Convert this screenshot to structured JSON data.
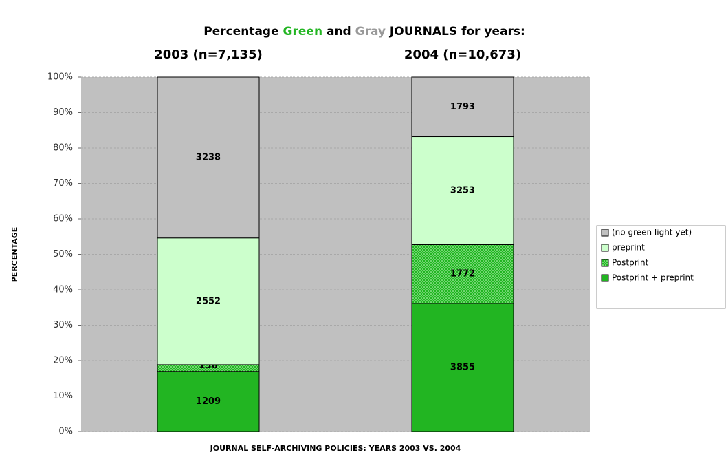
{
  "chart_data": {
    "type": "bar",
    "stacking": "percent",
    "title": [
      "Percentage ",
      "Green",
      " and ",
      "Gray",
      " JOURNALS for years:"
    ],
    "title_colors": [
      "#000000",
      "#22b522",
      "#000000",
      "#999999",
      "#000000"
    ],
    "categories": [
      "2003 (n=7,135)",
      "2004 (n=10,673)"
    ],
    "y_label": "PERCENTAGE",
    "x_label": "JOURNAL SELF-ARCHIVING POLICIES: YEARS 2003 VS. 2004",
    "ylim": [
      0,
      100
    ],
    "yticks": [
      {
        "value": 0,
        "label": "0%"
      },
      {
        "value": 10,
        "label": "10%"
      },
      {
        "value": 20,
        "label": "20%"
      },
      {
        "value": 30,
        "label": "30%"
      },
      {
        "value": 40,
        "label": "40%"
      },
      {
        "value": 50,
        "label": "50%"
      },
      {
        "value": 60,
        "label": "60%"
      },
      {
        "value": 70,
        "label": "70%"
      },
      {
        "value": 80,
        "label": "80%"
      },
      {
        "value": 90,
        "label": "90%"
      },
      {
        "value": 100,
        "label": "100%"
      }
    ],
    "grid": true,
    "legend": "right",
    "series": [
      {
        "name": "Postprint + preprint",
        "color": "#22b522",
        "values": [
          1209,
          3855
        ]
      },
      {
        "name": "Postprint",
        "color": "#22b522",
        "pattern": "dots",
        "values": [
          136,
          1772
        ]
      },
      {
        "name": "preprint",
        "color": "#ccffcc",
        "values": [
          2552,
          3253
        ]
      },
      {
        "name": "(no green light yet)",
        "color": "#c0c0c0",
        "values": [
          3238,
          1793
        ]
      }
    ]
  }
}
